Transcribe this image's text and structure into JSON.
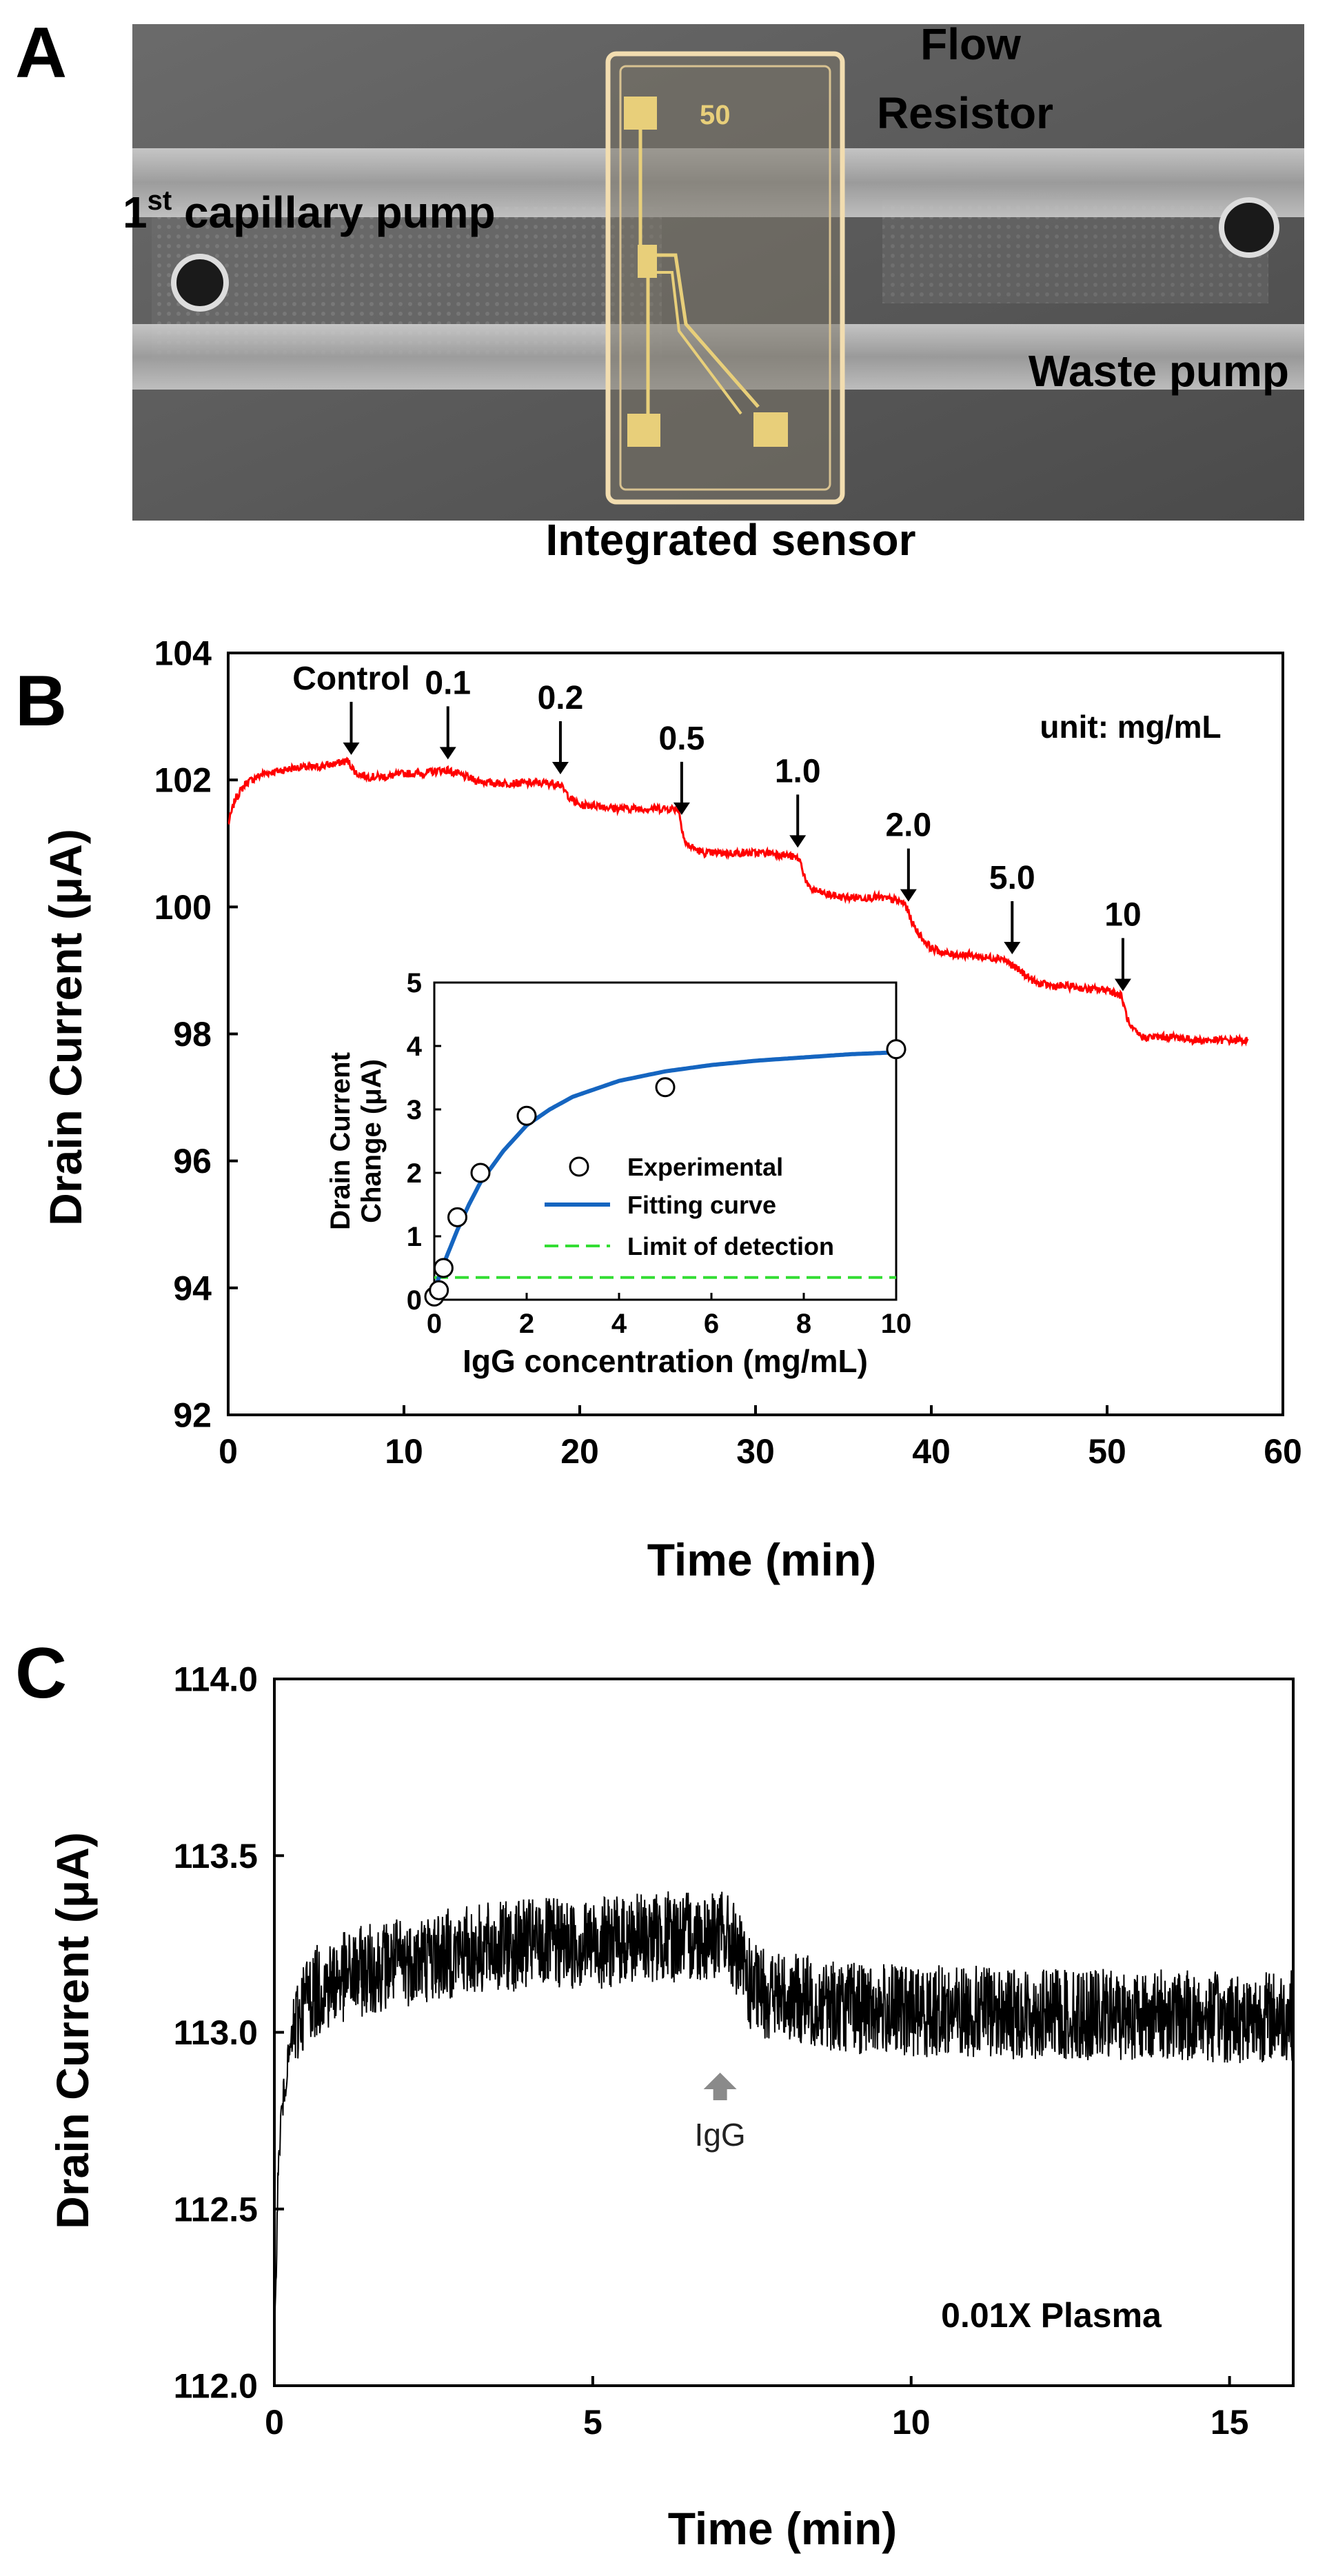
{
  "panelA": {
    "letter": "A",
    "labels": {
      "flow_line1": "Flow",
      "flow_line2": "Resistor",
      "capillary_main": "1",
      "capillary_sup": "st",
      "capillary_rest": " capillary pump",
      "waste": "Waste pump",
      "sensor": "Integrated sensor",
      "chip_mark": "50"
    }
  },
  "chart_data": [
    {
      "id": "B-main",
      "type": "line",
      "panel": "B",
      "xlabel": "Time (min)",
      "ylabel": "Drain Current (μA)",
      "xlim": [
        0,
        60
      ],
      "ylim": [
        92,
        104
      ],
      "xticks": [
        0,
        10,
        20,
        30,
        40,
        50,
        60
      ],
      "yticks": [
        92,
        94,
        96,
        98,
        100,
        102,
        104
      ],
      "unit_note": "unit: mg/mL",
      "color": "#ff0000",
      "series": [
        {
          "name": "drain current",
          "x": [
            0,
            0.4,
            1,
            2,
            3,
            4,
            5,
            6,
            6.8,
            7.3,
            8,
            9,
            10,
            11,
            12,
            12.5,
            13,
            14,
            15,
            16,
            17,
            18,
            18.8,
            19.5,
            20,
            21,
            22,
            23,
            24,
            25,
            25.6,
            26,
            27,
            28,
            29,
            30,
            31,
            32,
            32.5,
            33,
            34,
            35,
            36,
            37,
            38,
            38.5,
            39,
            39.5,
            40,
            41,
            42,
            43,
            44,
            44.5,
            45,
            45.5,
            46,
            47,
            48,
            49,
            50,
            50.8,
            51.3,
            52,
            53,
            54,
            55,
            56,
            57,
            58
          ],
          "y": [
            101.3,
            101.7,
            101.95,
            102.1,
            102.15,
            102.2,
            102.2,
            102.25,
            102.3,
            102.1,
            102.05,
            102.05,
            102.1,
            102.1,
            102.15,
            102.15,
            102.1,
            102.0,
            101.95,
            101.95,
            101.95,
            101.95,
            101.95,
            101.7,
            101.6,
            101.6,
            101.55,
            101.55,
            101.55,
            101.55,
            101.55,
            101.0,
            100.85,
            100.85,
            100.85,
            100.85,
            100.85,
            100.8,
            100.75,
            100.3,
            100.2,
            100.15,
            100.15,
            100.15,
            100.1,
            100.05,
            99.7,
            99.5,
            99.35,
            99.25,
            99.25,
            99.2,
            99.2,
            99.1,
            99.0,
            98.9,
            98.8,
            98.75,
            98.75,
            98.7,
            98.7,
            98.6,
            98.1,
            97.95,
            97.95,
            97.95,
            97.9,
            97.9,
            97.9,
            97.9
          ]
        }
      ],
      "annotations": [
        {
          "text": "Control",
          "x": 7
        },
        {
          "text": "0.1",
          "x": 12.5
        },
        {
          "text": "0.2",
          "x": 18.9
        },
        {
          "text": "0.5",
          "x": 25.8
        },
        {
          "text": "1.0",
          "x": 32.4
        },
        {
          "text": "2.0",
          "x": 38.7
        },
        {
          "text": "5.0",
          "x": 44.6
        },
        {
          "text": "10",
          "x": 50.9
        }
      ]
    },
    {
      "id": "B-inset",
      "type": "scatter",
      "panel": "B",
      "xlabel": "IgG concentration (mg/mL)",
      "ylabel_line1": "Drain Current",
      "ylabel_line2": "Change (μA)",
      "xlim": [
        0,
        10
      ],
      "ylim": [
        0,
        5
      ],
      "xticks": [
        0,
        2,
        4,
        6,
        8,
        10
      ],
      "yticks": [
        0,
        1,
        2,
        3,
        4,
        5
      ],
      "legend": [
        "Experimental",
        "Fitting curve",
        "Limit of detection"
      ],
      "experimental": {
        "x": [
          0,
          0.1,
          0.2,
          0.5,
          1,
          2,
          5,
          10
        ],
        "y": [
          0.05,
          0.15,
          0.5,
          1.3,
          2.0,
          2.9,
          3.35,
          3.95
        ]
      },
      "fit": {
        "x": [
          0,
          0.25,
          0.5,
          0.75,
          1,
          1.5,
          2,
          2.5,
          3,
          4,
          5,
          6,
          7,
          8,
          9,
          10
        ],
        "y": [
          0.15,
          0.65,
          1.1,
          1.5,
          1.85,
          2.35,
          2.75,
          3.0,
          3.2,
          3.45,
          3.6,
          3.7,
          3.77,
          3.82,
          3.87,
          3.9
        ]
      },
      "lod": 0.35,
      "fit_color": "#1565c0",
      "lod_color": "#33dd33"
    },
    {
      "id": "C",
      "type": "line",
      "panel": "C",
      "xlabel": "Time (min)",
      "ylabel": "Drain Current (μA)",
      "xlim": [
        0,
        16
      ],
      "ylim": [
        112.0,
        114.0
      ],
      "xticks": [
        0,
        5,
        10,
        15
      ],
      "yticks": [
        "112.0",
        "112.5",
        "113.0",
        "113.5",
        "114.0"
      ],
      "color": "#000000",
      "series": [
        {
          "name": "drain current",
          "x": [
            0,
            0.05,
            0.1,
            0.2,
            0.3,
            0.4,
            0.5,
            0.7,
            1.0,
            1.5,
            2,
            3,
            4,
            5,
            6,
            6.5,
            7,
            7.2,
            7.5,
            8,
            9,
            10,
            11,
            12,
            13,
            14,
            15,
            16
          ],
          "y": [
            112.05,
            112.55,
            112.75,
            112.9,
            113.0,
            113.05,
            113.1,
            113.12,
            113.15,
            113.18,
            113.2,
            113.23,
            113.25,
            113.25,
            113.27,
            113.27,
            113.28,
            113.25,
            113.12,
            113.1,
            113.07,
            113.06,
            113.06,
            113.05,
            113.05,
            113.05,
            113.04,
            113.05
          ]
        }
      ],
      "arrow_label": "IgG",
      "arrow_x": 7.0,
      "note": "0.01X Plasma"
    }
  ],
  "panelB": {
    "letter": "B"
  },
  "panelC": {
    "letter": "C"
  }
}
